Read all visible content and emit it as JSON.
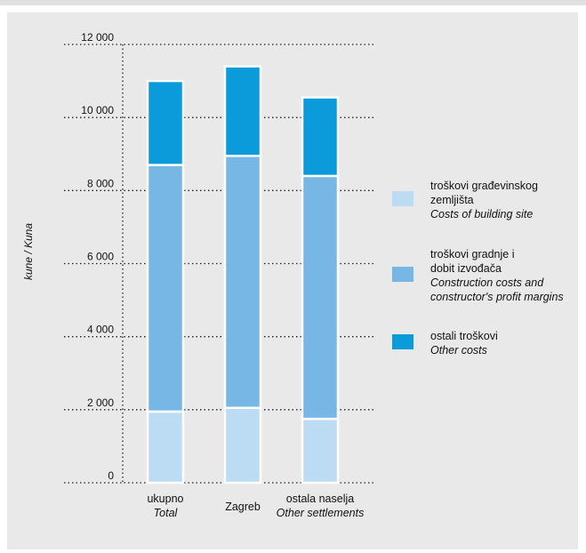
{
  "chart_data": {
    "type": "bar",
    "stacked": true,
    "ylabel": "kune / Kuna",
    "ylim": [
      0,
      12000
    ],
    "yticks": [
      "0",
      "2 000",
      "4 000",
      "6 000",
      "8 000",
      "10 000",
      "12 000"
    ],
    "ytick_values": [
      0,
      2000,
      4000,
      6000,
      8000,
      10000,
      12000
    ],
    "grid": "dotted horizontal",
    "legend_position": "right",
    "categories": [
      {
        "label": "ukupno",
        "label_en": "Total"
      },
      {
        "label": "Zagreb",
        "label_en": ""
      },
      {
        "label": "ostala naselja",
        "label_en": "Other settlements"
      }
    ],
    "series": [
      {
        "name_lines": [
          "troškovi građevinskog",
          "zemljišta"
        ],
        "name_en_lines": [
          "Costs of building site"
        ],
        "color": "#bcdcf3",
        "values": [
          1950,
          2050,
          1750
        ]
      },
      {
        "name_lines": [
          "troškovi gradnje i",
          "dobit izvođača"
        ],
        "name_en_lines": [
          "Construction costs and",
          "constructor's profit margins"
        ],
        "color": "#76b7e6",
        "values": [
          6750,
          6900,
          6650
        ]
      },
      {
        "name_lines": [
          "ostali troškovi"
        ],
        "name_en_lines": [
          "Other costs"
        ],
        "color": "#0b9bdb",
        "values": [
          2300,
          2450,
          2150
        ]
      }
    ]
  }
}
